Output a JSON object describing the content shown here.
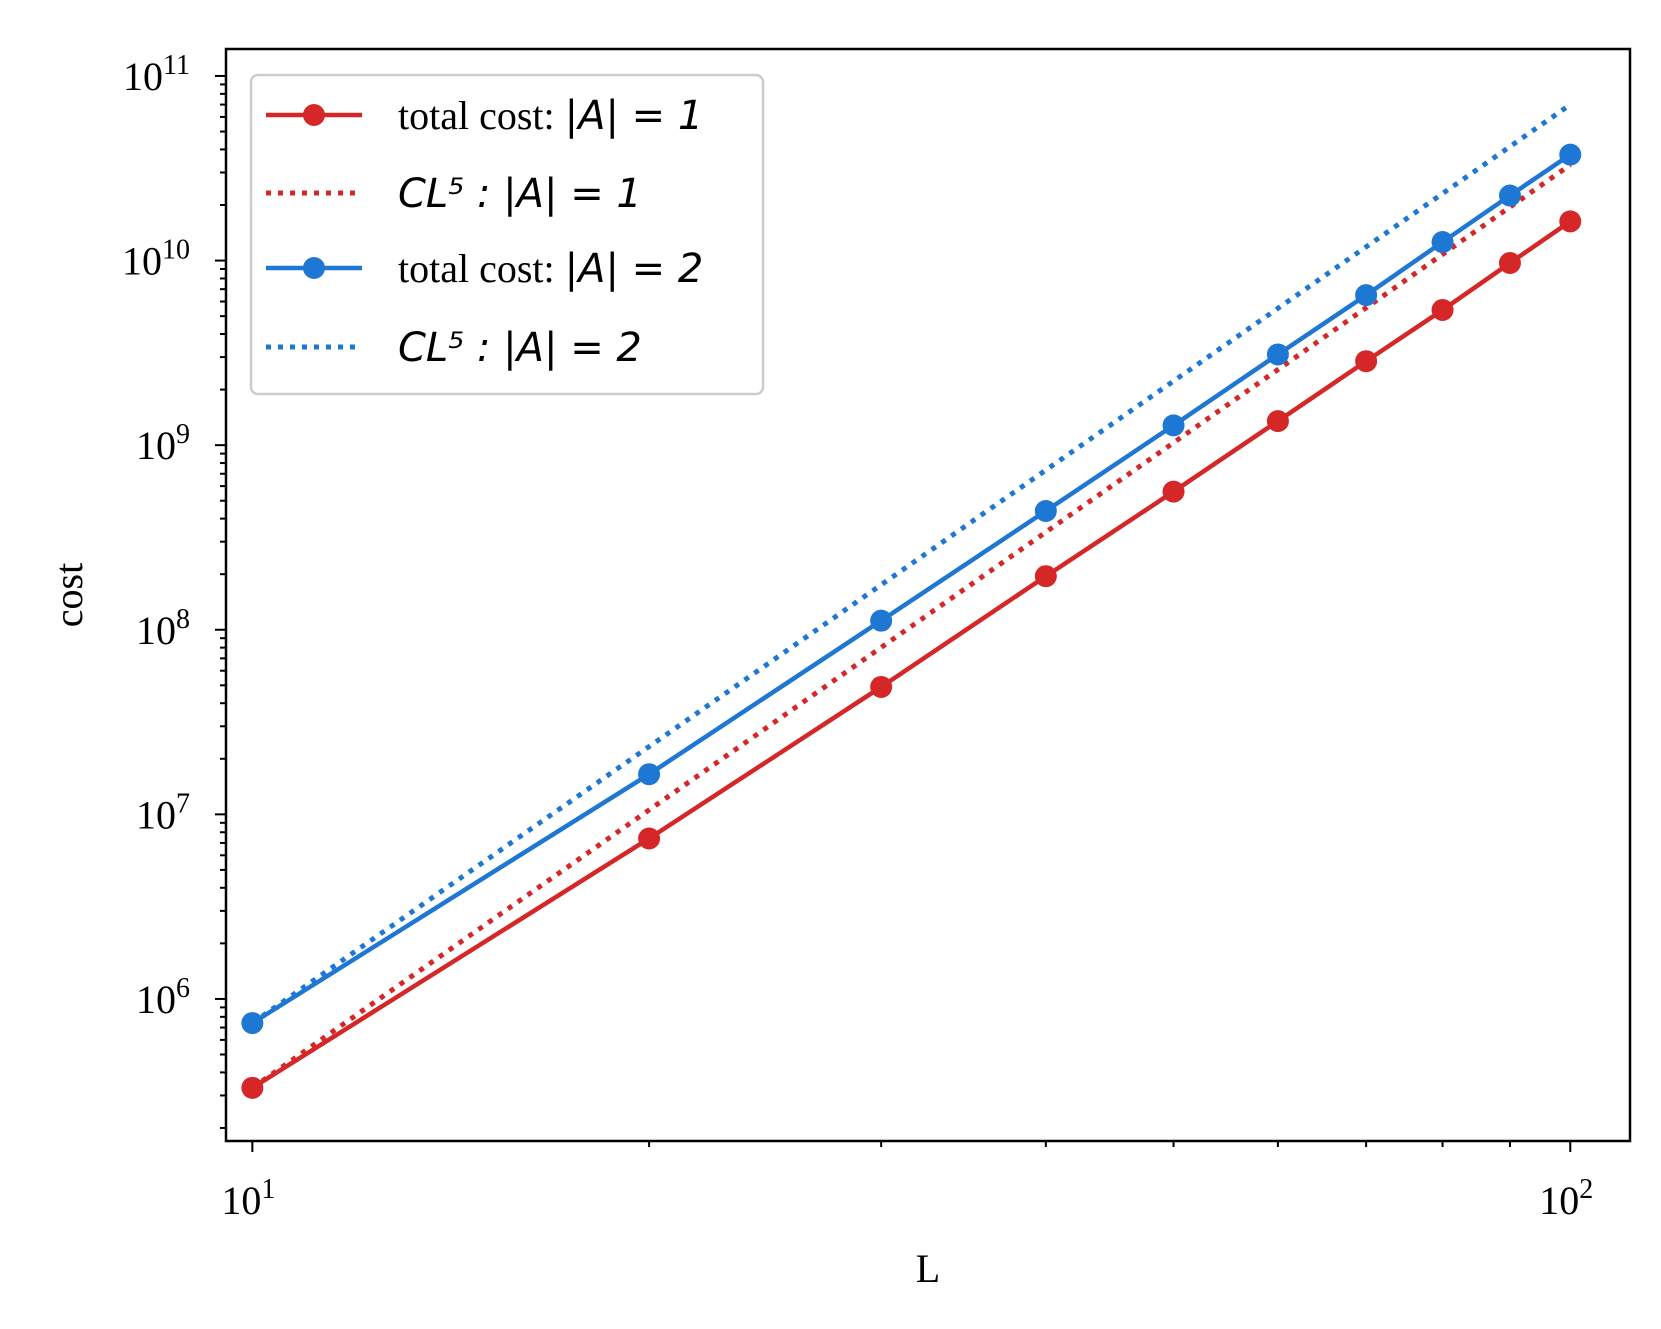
{
  "chart_data": {
    "type": "line",
    "xscale": "log",
    "yscale": "log",
    "xlabel": "L",
    "ylabel": "cost",
    "xlim": [
      9.55,
      111
    ],
    "ylim": [
      170000,
      140000000000
    ],
    "x_ticks": [
      {
        "value": 10,
        "base": "10",
        "exp": "1"
      },
      {
        "value": 100,
        "base": "10",
        "exp": "2"
      }
    ],
    "y_ticks": [
      {
        "value": 1000000,
        "base": "10",
        "exp": "6"
      },
      {
        "value": 10000000,
        "base": "10",
        "exp": "7"
      },
      {
        "value": 100000000,
        "base": "10",
        "exp": "8"
      },
      {
        "value": 1000000000,
        "base": "10",
        "exp": "9"
      },
      {
        "value": 10000000000,
        "base": "10",
        "exp": "10"
      },
      {
        "value": 100000000000,
        "base": "10",
        "exp": "11"
      }
    ],
    "series": [
      {
        "name": "total cost: |A| = 1",
        "legend_prefix": "total cost: ",
        "legend_math": "|A| = 1",
        "style": "solid-marker",
        "color": "#d62728",
        "x": [
          10,
          20,
          30,
          40,
          50,
          60,
          70,
          80,
          90,
          100
        ],
        "y": [
          330000,
          7400000,
          49000000,
          195000000,
          560000000,
          1350000000,
          2850000000,
          5400000000,
          9700000000,
          16300000000
        ]
      },
      {
        "name": "CL^5 : |A| = 1",
        "legend_prefix": "",
        "legend_math": "CL⁵ : |A| = 1",
        "style": "dotted",
        "color": "#d62728",
        "x": [
          10,
          100
        ],
        "y": [
          330000,
          33000000000
        ]
      },
      {
        "name": "total cost: |A| = 2",
        "legend_prefix": "total cost: ",
        "legend_math": "|A| = 2",
        "style": "solid-marker",
        "color": "#1f77d4",
        "x": [
          10,
          20,
          30,
          40,
          50,
          60,
          70,
          80,
          90,
          100
        ],
        "y": [
          740000,
          16500000,
          112000000,
          440000000,
          1280000000,
          3100000000,
          6500000000,
          12600000000,
          22500000000,
          37500000000
        ]
      },
      {
        "name": "CL^5 : |A| = 2",
        "legend_prefix": "",
        "legend_math": "CL⁵ : |A| = 2",
        "style": "dotted",
        "color": "#1f77d4",
        "x": [
          10,
          100
        ],
        "y": [
          740000,
          70000000000
        ]
      }
    ],
    "legend_position": "top-left",
    "grid": false
  }
}
